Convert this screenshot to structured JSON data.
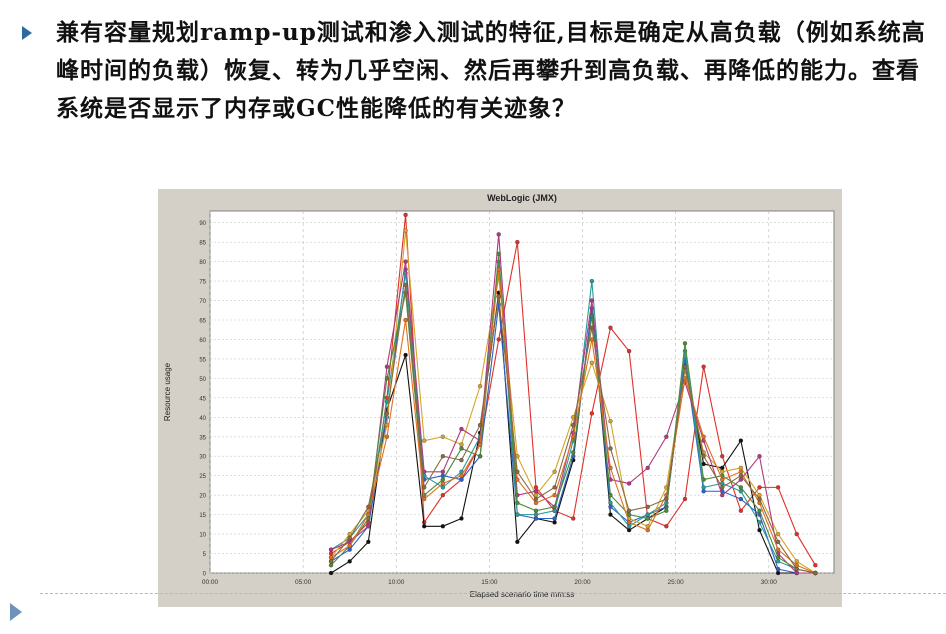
{
  "slide": {
    "text": "兼有容量规划ramp-up测试和渗入测试的特征,目标是确定从高负载（例如系统高峰时间的负载）恢复、转为几乎空闲、然后再攀升到高负载、再降低的能力。查看系统是否显示了内存或GC性能降低的有关迹象？"
  },
  "colors": {
    "accent": "#2e6a9f",
    "chart_frame": "#d4d0c8",
    "plot_bg": "#ffffff"
  },
  "chart_data": {
    "type": "line",
    "title": "WebLogic (JMX)",
    "xlabel": "Elapsed scenario time mm:ss",
    "ylabel": "Resource usage",
    "xlim": [
      0,
      33.5
    ],
    "ylim": [
      0,
      93
    ],
    "xticks": [
      {
        "v": 0,
        "label": "00:00"
      },
      {
        "v": 5,
        "label": "05:00"
      },
      {
        "v": 10,
        "label": "10:00"
      },
      {
        "v": 15,
        "label": "15:00"
      },
      {
        "v": 20,
        "label": "20:00"
      },
      {
        "v": 25,
        "label": "25:00"
      },
      {
        "v": 30,
        "label": "30:00"
      }
    ],
    "yticks": [
      0,
      5,
      10,
      15,
      20,
      25,
      30,
      35,
      40,
      45,
      50,
      55,
      60,
      65,
      70,
      75,
      80,
      85,
      90
    ],
    "grid": true,
    "x": [
      6.5,
      7.5,
      8.5,
      9.5,
      10.5,
      11.5,
      12.5,
      13.5,
      14.5,
      15.5,
      16.5,
      17.5,
      18.5,
      19.5,
      20.5,
      21.5,
      22.5,
      23.5,
      24.5,
      25.5,
      26.5,
      27.5,
      28.5,
      29.5,
      30.5,
      31.5,
      32.5
    ],
    "series": [
      {
        "color": "#e0302a",
        "values": [
          5,
          8,
          13,
          45,
          92,
          13,
          20,
          24,
          33,
          60,
          85,
          22,
          16,
          14,
          41,
          63,
          57,
          14,
          12,
          19,
          53,
          30,
          16,
          22,
          22,
          10,
          2
        ]
      },
      {
        "color": "#111111",
        "values": [
          0,
          3,
          8,
          42,
          56,
          12,
          12,
          14,
          36,
          72,
          8,
          14,
          13,
          29,
          68,
          15,
          11,
          14,
          17,
          54,
          28,
          27,
          34,
          11,
          0,
          0,
          0
        ]
      },
      {
        "color": "#2f5fc8",
        "values": [
          3,
          6,
          12,
          40,
          78,
          24,
          25,
          24,
          30,
          69,
          15,
          14,
          14,
          30,
          68,
          17,
          13,
          15,
          17,
          55,
          21,
          21,
          19,
          15,
          1,
          0,
          0
        ]
      },
      {
        "color": "#2a9a9a",
        "values": [
          6,
          9,
          15,
          44,
          77,
          25,
          22,
          26,
          35,
          80,
          15,
          15,
          16,
          34,
          75,
          18,
          12,
          15,
          18,
          57,
          22,
          23,
          21,
          13,
          3,
          1,
          0
        ]
      },
      {
        "color": "#d4a52a",
        "values": [
          4,
          10,
          16,
          38,
          88,
          34,
          35,
          33,
          48,
          76,
          30,
          20,
          26,
          40,
          54,
          39,
          14,
          12,
          22,
          52,
          31,
          26,
          27,
          20,
          10,
          3,
          0
        ]
      },
      {
        "color": "#b03a80",
        "values": [
          6,
          8,
          12,
          53,
          80,
          26,
          26,
          37,
          34,
          87,
          20,
          21,
          17,
          36,
          70,
          24,
          23,
          27,
          35,
          49,
          34,
          20,
          24,
          30,
          5,
          0,
          0
        ]
      },
      {
        "color": "#4e8a3a",
        "values": [
          2,
          7,
          14,
          50,
          72,
          20,
          24,
          32,
          30,
          82,
          18,
          16,
          17,
          31,
          66,
          20,
          15,
          14,
          16,
          59,
          24,
          25,
          22,
          16,
          4,
          1,
          0
        ]
      },
      {
        "color": "#e07020",
        "values": [
          4,
          7,
          15,
          35,
          65,
          19,
          23,
          25,
          33,
          78,
          24,
          18,
          20,
          35,
          60,
          27,
          13,
          11,
          20,
          50,
          35,
          24,
          26,
          18,
          6,
          2,
          0
        ]
      },
      {
        "color": "#8a6a40",
        "values": [
          3,
          9,
          17,
          41,
          74,
          22,
          30,
          29,
          38,
          71,
          26,
          19,
          22,
          38,
          63,
          32,
          16,
          17,
          19,
          53,
          30,
          22,
          25,
          19,
          8,
          1,
          0
        ]
      }
    ]
  }
}
